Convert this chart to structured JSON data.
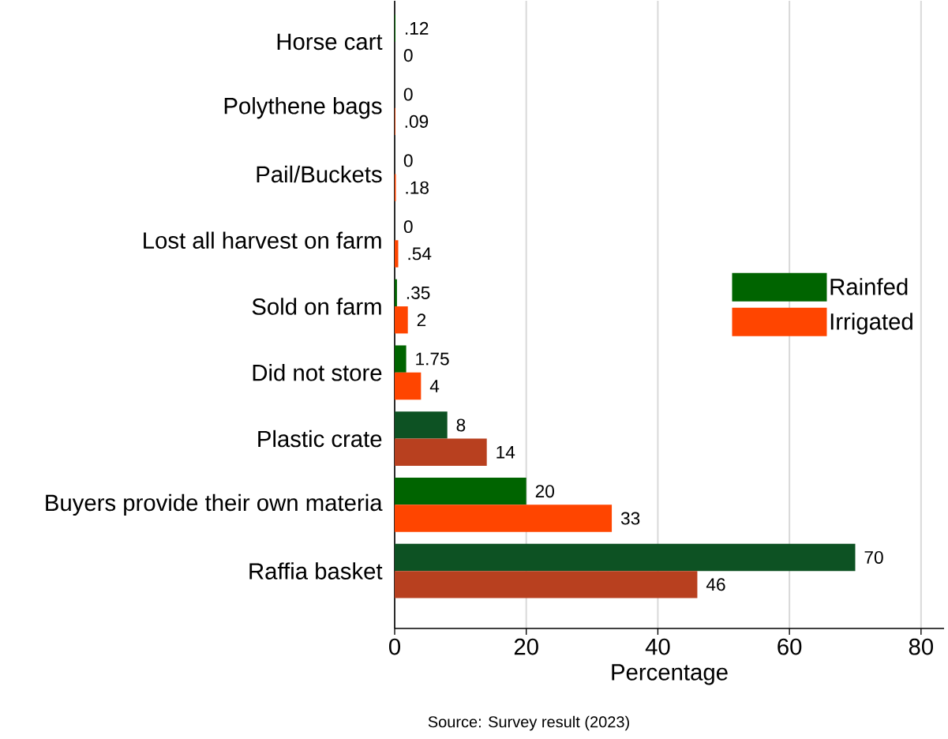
{
  "chart_data": {
    "type": "bar",
    "orientation": "horizontal",
    "xlabel": "Percentage",
    "categories": [
      "Horse cart",
      "Polythene bags",
      "Pail/Buckets",
      "Lost all harvest on farm",
      "Sold on farm",
      "Did not store",
      "Plastic crate",
      "Buyers provide their own materia",
      "Raffia basket"
    ],
    "series": [
      {
        "name": "Rainfed",
        "color": "#006400",
        "colors": [
          "#006400",
          "#006400",
          "#006400",
          "#006400",
          "#006400",
          "#006400",
          "#0d5223",
          "#006400",
          "#0d5223"
        ],
        "values": [
          0.12,
          0,
          0,
          0,
          0.35,
          1.75,
          8,
          20,
          70
        ],
        "value_labels": [
          ".12",
          "0",
          "0",
          "0",
          ".35",
          "1.75",
          "8",
          "20",
          "70"
        ]
      },
      {
        "name": "Irrigated",
        "color": "#ff4500",
        "colors": [
          "#ff4500",
          "#ff4500",
          "#ff4500",
          "#ff4500",
          "#ff4500",
          "#ff4500",
          "#b8401f",
          "#ff4500",
          "#b8401f"
        ],
        "values": [
          0,
          0.09,
          0.18,
          0.54,
          2,
          4,
          14,
          33,
          46
        ],
        "value_labels": [
          "0",
          ".09",
          ".18",
          ".54",
          "2",
          "4",
          "14",
          "33",
          "46"
        ]
      }
    ],
    "xlim": [
      0,
      83.5
    ],
    "xticks": [
      0,
      20,
      40,
      60,
      80
    ],
    "grid": "x",
    "legend": "right",
    "annotations": [
      "Source: Survey result (2023)"
    ]
  }
}
